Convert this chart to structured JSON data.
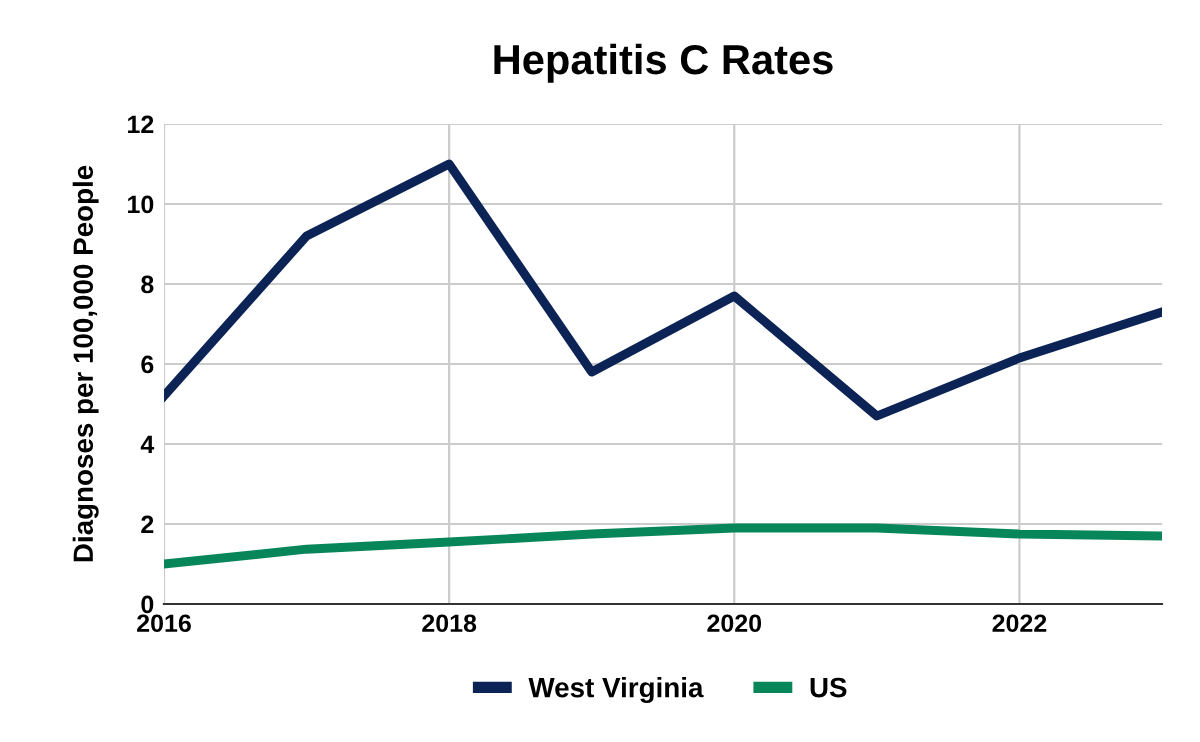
{
  "chart_data": {
    "type": "line",
    "title": "Hepatitis C Rates",
    "ylabel": "Diagnoses per 100,000 People",
    "x": [
      2016,
      2017,
      2018,
      2019,
      2020,
      2021,
      2022,
      2023
    ],
    "series": [
      {
        "name": "West Virginia",
        "color": "#0c2356",
        "values": [
          5.2,
          9.2,
          11.0,
          5.8,
          7.7,
          4.7,
          6.15,
          7.3
        ]
      },
      {
        "name": "US",
        "color": "#07865a",
        "values": [
          1.0,
          1.37,
          1.55,
          1.75,
          1.9,
          1.9,
          1.75,
          1.7
        ]
      }
    ],
    "xlim": [
      2016,
      2023
    ],
    "xticks": [
      2016,
      2018,
      2020,
      2022
    ],
    "ylim": [
      0,
      12
    ],
    "yticks": [
      0,
      2,
      4,
      6,
      8,
      10,
      12
    ],
    "grid": true,
    "legend": "bottom",
    "marker": "none",
    "line_style": "solid"
  }
}
